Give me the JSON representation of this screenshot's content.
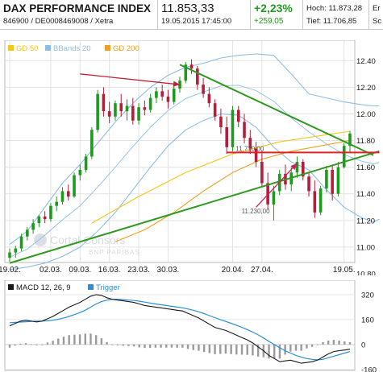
{
  "header": {
    "title": "DAX PERFORMANCE INDEX",
    "identifier": "846900 / DE0008469008 / Xetra",
    "price": "11.853,33",
    "timestamp": "19.05.2015 17:45:00",
    "change_pct": "+2,23%",
    "change_abs": "+259,05",
    "high_label": "Hoch: 11.873,28",
    "low_label": "Tief: 11.706,85",
    "cut_label_1": "Er",
    "cut_label_2": "Sc"
  },
  "colors": {
    "candle_up": "#1e9a1e",
    "candle_down": "#b41e3c",
    "gd50": "#f5c518",
    "bbands": "#8dbde6",
    "gd200": "#f0a020",
    "trendline": "#2f9a20",
    "resistance": "#e02020",
    "arrow_1": "#c02030",
    "arrow_2": "#d0205a",
    "macd": "#1a1a1a",
    "trigger": "#2a90d8",
    "histogram": "#9a9a9a"
  },
  "watermark": {
    "line1": "Cortal Consors",
    "line2": "BNP PARIBAS"
  },
  "chart_data": [
    {
      "type": "candlestick",
      "legend": [
        {
          "name": "GD 50",
          "color": "#f5c518"
        },
        {
          "name": "BBands 20",
          "color": "#8dbde6"
        },
        {
          "name": "GD 200",
          "color": "#f0a020"
        }
      ],
      "legend_position": "top-left",
      "grid": true,
      "x_ticks": [
        {
          "label": "19.02.",
          "i": 0
        },
        {
          "label": "02.03.",
          "i": 7
        },
        {
          "label": "09.03.",
          "i": 12
        },
        {
          "label": "16.03.",
          "i": 17
        },
        {
          "label": "23.03.",
          "i": 22
        },
        {
          "label": "30.03.",
          "i": 27
        },
        {
          "label": "20.04.",
          "i": 38
        },
        {
          "label": "27.04.",
          "i": 43
        },
        {
          "label": "19.05.",
          "i": 57
        }
      ],
      "ylim": [
        10800,
        12450
      ],
      "y_ticks": [
        {
          "label": "12.40",
          "value": 12400
        },
        {
          "label": "12.20",
          "value": 12200
        },
        {
          "label": "12.00",
          "value": 12000
        },
        {
          "label": "11.80",
          "value": 11800
        },
        {
          "label": "11.60",
          "value": 11600
        },
        {
          "label": "11.40",
          "value": 11400
        },
        {
          "label": "11.20",
          "value": 11200
        },
        {
          "label": "11.00",
          "value": 11000
        },
        {
          "label": "10.80",
          "value": 10800
        }
      ],
      "ohlc": [
        [
          10920,
          10990,
          10890,
          10960
        ],
        [
          10960,
          11010,
          10920,
          10990
        ],
        [
          10990,
          11100,
          10970,
          11080
        ],
        [
          11080,
          11150,
          11050,
          11130
        ],
        [
          11130,
          11210,
          11100,
          11180
        ],
        [
          11180,
          11240,
          11150,
          11230
        ],
        [
          11230,
          11270,
          11180,
          11210
        ],
        [
          11210,
          11330,
          11190,
          11310
        ],
        [
          11310,
          11380,
          11270,
          11340
        ],
        [
          11340,
          11450,
          11320,
          11420
        ],
        [
          11420,
          11470,
          11350,
          11380
        ],
        [
          11380,
          11560,
          11370,
          11540
        ],
        [
          11540,
          11620,
          11500,
          11580
        ],
        [
          11580,
          11700,
          11560,
          11680
        ],
        [
          11680,
          11900,
          11660,
          11880
        ],
        [
          11880,
          12180,
          11860,
          12150
        ],
        [
          12150,
          12200,
          11980,
          12020
        ],
        [
          12020,
          12090,
          11930,
          11980
        ],
        [
          11980,
          12100,
          11950,
          12080
        ],
        [
          12080,
          12150,
          11980,
          12020
        ],
        [
          12020,
          12110,
          11950,
          12060
        ],
        [
          12060,
          12120,
          11920,
          11950
        ],
        [
          11950,
          12080,
          11920,
          12050
        ],
        [
          12050,
          12100,
          11990,
          12030
        ],
        [
          12030,
          12150,
          12010,
          12120
        ],
        [
          12120,
          12200,
          12080,
          12170
        ],
        [
          12170,
          12220,
          12100,
          12130
        ],
        [
          12130,
          12180,
          12040,
          12090
        ],
        [
          12090,
          12220,
          12070,
          12190
        ],
        [
          12190,
          12280,
          12160,
          12250
        ],
        [
          12250,
          12390,
          12230,
          12370
        ],
        [
          12370,
          12410,
          12300,
          12340
        ],
        [
          12340,
          12360,
          12180,
          12220
        ],
        [
          12220,
          12270,
          12120,
          12150
        ],
        [
          12150,
          12200,
          12050,
          12080
        ],
        [
          12080,
          12110,
          11950,
          11980
        ],
        [
          11980,
          12040,
          11850,
          11900
        ],
        [
          11900,
          11980,
          11700,
          11750
        ],
        [
          11750,
          12060,
          11720,
          12030
        ],
        [
          12030,
          12060,
          11900,
          11940
        ],
        [
          11940,
          12000,
          11780,
          11820
        ],
        [
          11820,
          11880,
          11700,
          11740
        ],
        [
          11740,
          11790,
          11600,
          11640
        ],
        [
          11640,
          11720,
          11450,
          11480
        ],
        [
          11480,
          11560,
          11280,
          11320
        ],
        [
          11320,
          11460,
          11200,
          11420
        ],
        [
          11420,
          11580,
          11390,
          11550
        ],
        [
          11550,
          11620,
          11430,
          11470
        ],
        [
          11470,
          11600,
          11420,
          11560
        ],
        [
          11560,
          11680,
          11520,
          11640
        ],
        [
          11640,
          11660,
          11500,
          11530
        ],
        [
          11530,
          11560,
          11380,
          11420
        ],
        [
          11420,
          11500,
          11220,
          11260
        ],
        [
          11260,
          11460,
          11240,
          11440
        ],
        [
          11440,
          11610,
          11410,
          11580
        ],
        [
          11580,
          11620,
          11350,
          11400
        ],
        [
          11400,
          11640,
          11380,
          11600
        ],
        [
          11600,
          11780,
          11590,
          11760
        ],
        [
          11760,
          11873,
          11707,
          11853
        ]
      ],
      "gd50": [
        11180,
        11380,
        11560,
        11700,
        11790,
        11830,
        11870
      ],
      "gd50_at": [
        14,
        22,
        30,
        38,
        46,
        52,
        58
      ],
      "gd200_from": 18,
      "gd200": [
        11040,
        11130,
        11260,
        11420,
        11560,
        11660,
        11720,
        11760,
        11800
      ],
      "bb_upper": [
        11020,
        11120,
        11300,
        11480,
        11620,
        11780,
        11940,
        12080,
        12200,
        12290,
        12350,
        12380,
        12420,
        12440,
        12450,
        12440,
        12300,
        12150,
        12120,
        12090,
        12070,
        12060,
        12060
      ],
      "bb_lower": [
        10830,
        10850,
        10880,
        10930,
        11000,
        11120,
        11260,
        11430,
        11600,
        11760,
        11880,
        11950,
        12000,
        11990,
        11900,
        11750,
        11640,
        11580,
        11430,
        11300,
        11220,
        11190,
        11210
      ],
      "bb_mid": [
        10925,
        10985,
        11090,
        11205,
        11310,
        11450,
        11600,
        11755,
        11900,
        12025,
        12115,
        12165,
        12210,
        12215,
        12175,
        12095,
        11970,
        11865,
        11775,
        11695,
        11645,
        11625,
        11635
      ],
      "bb_at": [
        0,
        3,
        6,
        9,
        12,
        15,
        18,
        21,
        24,
        27,
        30,
        33,
        36,
        39,
        42,
        45,
        48,
        51,
        54,
        57,
        60,
        62,
        63
      ],
      "trendlines": [
        {
          "from": [
            0,
            10880
          ],
          "to": [
            63,
            11720
          ],
          "color": "#2f9a20"
        },
        {
          "from": [
            29,
            12370
          ],
          "to": [
            62,
            11690
          ],
          "color": "#2f9a20"
        },
        {
          "from": [
            37,
            11710
          ],
          "to": [
            63,
            11710
          ],
          "color": "#e02020",
          "label": "11.710,00"
        }
      ],
      "arrows": [
        {
          "from": [
            12,
            12300
          ],
          "to": [
            29,
            12220
          ],
          "color": "#c02030"
        },
        {
          "from": [
            42,
            11300
          ],
          "to": [
            49,
            11630
          ],
          "color": "#d0205a"
        }
      ],
      "annotations": [
        {
          "text": "11.710,00",
          "at": [
            41,
            11710
          ]
        },
        {
          "text": "11.230,00",
          "at": [
            42,
            11240
          ]
        }
      ]
    },
    {
      "type": "line",
      "legend": [
        {
          "name": "MACD 12, 26, 9",
          "color": "#1a1a1a"
        },
        {
          "name": "Trigger",
          "color": "#2a90d8"
        }
      ],
      "legend_position": "top-left",
      "grid": true,
      "ylim": [
        -140,
        340
      ],
      "y_ticks": [
        {
          "label": "320",
          "value": 320
        },
        {
          "label": "160",
          "value": 160
        },
        {
          "label": "0",
          "value": 0
        },
        {
          "label": "-160",
          "value": -160
        }
      ],
      "macd": [
        120,
        135,
        150,
        155,
        150,
        145,
        150,
        165,
        180,
        200,
        220,
        240,
        255,
        270,
        290,
        310,
        320,
        315,
        300,
        290,
        285,
        280,
        275,
        270,
        260,
        250,
        245,
        240,
        235,
        230,
        225,
        220,
        215,
        200,
        185,
        170,
        150,
        130,
        110,
        100,
        90,
        75,
        60,
        45,
        30,
        10,
        -15,
        -40,
        -70,
        -90,
        -110,
        -105,
        -100,
        -110,
        -120,
        -115,
        -110,
        -100,
        -80,
        -60,
        -45,
        -40,
        -35,
        -30
      ],
      "trigger": [
        140,
        142,
        144,
        146,
        148,
        150,
        150,
        152,
        156,
        162,
        170,
        180,
        192,
        205,
        220,
        240,
        260,
        275,
        285,
        290,
        290,
        288,
        285,
        282,
        278,
        272,
        266,
        260,
        255,
        250,
        245,
        240,
        235,
        228,
        220,
        210,
        198,
        185,
        172,
        160,
        148,
        136,
        124,
        110,
        96,
        80,
        62,
        42,
        20,
        0,
        -20,
        -40,
        -55,
        -70,
        -80,
        -90,
        -95,
        -98,
        -95,
        -85,
        -75,
        -65,
        -55,
        -45
      ],
      "histogram": [
        -20,
        -7,
        6,
        9,
        2,
        -5,
        0,
        13,
        24,
        38,
        50,
        60,
        63,
        65,
        70,
        70,
        60,
        40,
        15,
        0,
        -5,
        -8,
        -10,
        -12,
        -18,
        -22,
        -21,
        -20,
        -20,
        -20,
        -20,
        -20,
        -20,
        -28,
        -35,
        -40,
        -48,
        -55,
        -62,
        -60,
        -58,
        -61,
        -64,
        -65,
        -66,
        -70,
        -77,
        -82,
        -90,
        -90,
        -90,
        -65,
        -45,
        -40,
        -40,
        -25,
        -15,
        -2,
        15,
        25,
        30,
        25,
        20,
        15
      ]
    }
  ]
}
